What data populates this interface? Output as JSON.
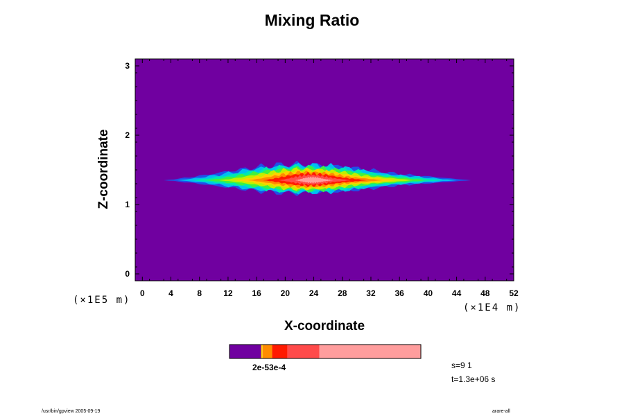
{
  "chart_data": {
    "type": "heatmap",
    "title": "Mixing Ratio",
    "xlabel": "X-coordinate",
    "ylabel": "Z-coordinate",
    "x_unit": "(×1E4 m)",
    "y_unit": "(×1E5 m)",
    "xlim": [
      -1,
      52
    ],
    "ylim": [
      -0.1,
      3.1
    ],
    "x_ticks": [
      0,
      4,
      8,
      12,
      16,
      20,
      24,
      28,
      32,
      36,
      40,
      44,
      48,
      52
    ],
    "y_ticks": [
      0,
      1,
      2,
      3
    ],
    "background_color": "#7000a0",
    "levels": [
      {
        "color": "#7000a0"
      },
      {
        "color": "#2050e8"
      },
      {
        "color": "#00c0f0"
      },
      {
        "color": "#00e8b0"
      },
      {
        "color": "#40f040"
      },
      {
        "color": "#c0f000"
      },
      {
        "color": "#ffd000"
      },
      {
        "color": "#ff8c00"
      },
      {
        "color": "#ff1a00"
      },
      {
        "color": "#ff4a4a"
      },
      {
        "color": "#ff9d9d"
      }
    ],
    "plume": {
      "x_range": [
        3,
        46
      ],
      "z_center": 1.35,
      "z_thickness": 0.45,
      "max_x": 24,
      "max_z": 1.35
    },
    "colorbar": {
      "segments": [
        {
          "color": "#7000a0",
          "fraction": 0.165
        },
        {
          "color": "#ffd000",
          "fraction": 0.008
        },
        {
          "color": "#ff8c00",
          "fraction": 0.05
        },
        {
          "color": "#ff1a00",
          "fraction": 0.08
        },
        {
          "color": "#ff4a4a",
          "fraction": 0.167
        },
        {
          "color": "#ff9d9d",
          "fraction": 0.53
        }
      ],
      "label": "2e-53e-4"
    }
  },
  "info": {
    "step": "s=9 1",
    "time": "t=1.3e+06 s"
  },
  "footer": {
    "program": "/usr/bin/gpview 2005-09-19",
    "source": "arare-all"
  }
}
